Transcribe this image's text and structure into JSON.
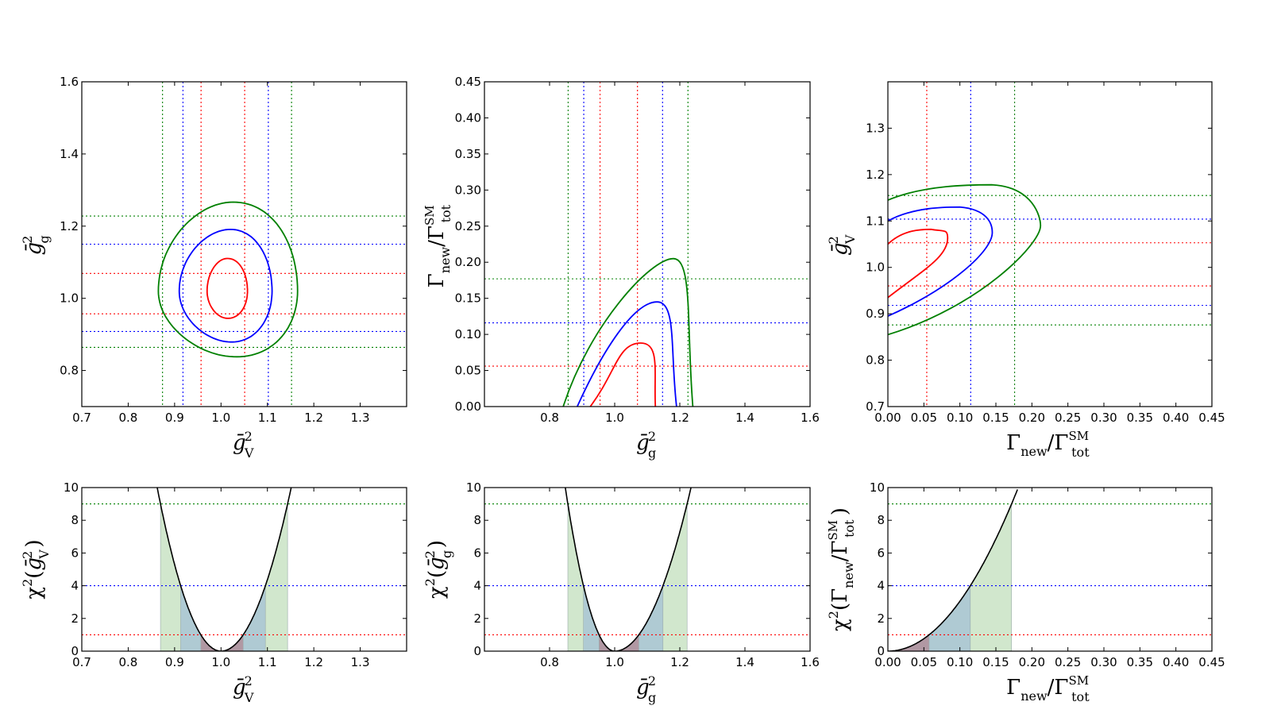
{
  "colors": {
    "c1": "#ff0000",
    "c2": "#0000ff",
    "c3": "#008000",
    "band1": "#b28f9a",
    "band2": "#a9c4d4",
    "band3": "#c9e3c4"
  },
  "chart_data": [
    {
      "id": "contour_gv_gg",
      "type": "contour",
      "xlabel": "ḡ²_V",
      "ylabel": "ḡ²_g",
      "xlim": [
        0.7,
        1.4
      ],
      "ylim": [
        0.7,
        1.6
      ],
      "xticks": [
        "0.7",
        "0.8",
        "0.9",
        "1.0",
        "1.1",
        "1.2",
        "1.3"
      ],
      "yticks": [
        "0.8",
        "1.0",
        "1.2",
        "1.4",
        "1.6"
      ],
      "center": [
        1.01,
        1.02
      ],
      "contours": [
        {
          "level": 1,
          "color": "red",
          "rx": [
            0.04,
            0.047
          ],
          "ry": [
            0.075,
            0.09
          ]
        },
        {
          "level": 2,
          "color": "blue",
          "rx": [
            0.1,
            0.1
          ],
          "ry": [
            0.14,
            0.17
          ]
        },
        {
          "level": 3,
          "color": "green",
          "rx": [
            0.145,
            0.155
          ],
          "ry": [
            0.18,
            0.245
          ]
        }
      ],
      "vlines": [
        {
          "x": 0.957,
          "color": "red"
        },
        {
          "x": 1.051,
          "color": "red"
        },
        {
          "x": 0.918,
          "color": "blue"
        },
        {
          "x": 1.102,
          "color": "blue"
        },
        {
          "x": 0.874,
          "color": "green"
        },
        {
          "x": 1.152,
          "color": "green"
        }
      ],
      "hlines": [
        {
          "y": 0.957,
          "color": "red"
        },
        {
          "y": 1.069,
          "color": "red"
        },
        {
          "y": 0.908,
          "color": "blue"
        },
        {
          "y": 1.15,
          "color": "blue"
        },
        {
          "y": 0.864,
          "color": "green"
        },
        {
          "y": 1.228,
          "color": "green"
        }
      ]
    },
    {
      "id": "contour_gg_gamma",
      "type": "contour",
      "xlabel": "ḡ²_g",
      "ylabel": "Γ_new/Γ_tot^SM",
      "xlim": [
        0.6,
        1.6
      ],
      "ylim": [
        0.0,
        0.45
      ],
      "xticks": [
        "0.8",
        "1.0",
        "1.2",
        "1.4",
        "1.6"
      ],
      "yticks": [
        "0.00",
        "0.05",
        "0.10",
        "0.15",
        "0.20",
        "0.25",
        "0.30",
        "0.35",
        "0.40",
        "0.45"
      ],
      "contours": [
        {
          "level": 1,
          "color": "red",
          "top": [
            1.09,
            0.088
          ],
          "left": 0.925,
          "right": 1.125
        },
        {
          "level": 2,
          "color": "blue",
          "top": [
            1.14,
            0.145
          ],
          "left": 0.885,
          "right": 1.19
        },
        {
          "level": 3,
          "color": "green",
          "top": [
            1.19,
            0.205
          ],
          "left": 0.842,
          "right": 1.24
        }
      ],
      "vlines": [
        {
          "x": 0.955,
          "color": "red"
        },
        {
          "x": 1.07,
          "color": "red"
        },
        {
          "x": 0.905,
          "color": "blue"
        },
        {
          "x": 1.147,
          "color": "blue"
        },
        {
          "x": 0.857,
          "color": "green"
        },
        {
          "x": 1.225,
          "color": "green"
        }
      ],
      "hlines": [
        {
          "y": 0.056,
          "color": "red"
        },
        {
          "y": 0.116,
          "color": "blue"
        },
        {
          "y": 0.177,
          "color": "green"
        }
      ]
    },
    {
      "id": "contour_gamma_gv",
      "type": "contour",
      "xlabel": "Γ_new/Γ_tot^SM",
      "ylabel": "ḡ²_V",
      "xlim": [
        0.0,
        0.45
      ],
      "ylim": [
        0.7,
        1.4
      ],
      "xticks": [
        "0.00",
        "0.05",
        "0.10",
        "0.15",
        "0.20",
        "0.25",
        "0.30",
        "0.35",
        "0.40",
        "0.45"
      ],
      "yticks": [
        "0.7",
        "0.8",
        "0.9",
        "1.0",
        "1.1",
        "1.2",
        "1.3"
      ],
      "contours": [
        {
          "level": 1,
          "color": "red",
          "upper": 1.05,
          "lower": 0.935,
          "right": [
            0.083,
            1.063
          ],
          "top": [
            0.06,
            1.082
          ]
        },
        {
          "level": 2,
          "color": "blue",
          "upper": 1.1,
          "lower": 0.895,
          "right": [
            0.145,
            1.075
          ],
          "top": [
            0.1,
            1.13
          ]
        },
        {
          "level": 3,
          "color": "green",
          "upper": 1.145,
          "lower": 0.855,
          "right": [
            0.212,
            1.09
          ],
          "top": [
            0.145,
            1.178
          ]
        }
      ],
      "vlines": [
        {
          "x": 0.054,
          "color": "red"
        },
        {
          "x": 0.115,
          "color": "blue"
        },
        {
          "x": 0.176,
          "color": "green"
        }
      ],
      "hlines": [
        {
          "y": 0.96,
          "color": "red"
        },
        {
          "y": 1.053,
          "color": "red"
        },
        {
          "y": 0.918,
          "color": "blue"
        },
        {
          "y": 1.104,
          "color": "blue"
        },
        {
          "y": 0.876,
          "color": "green"
        },
        {
          "y": 1.155,
          "color": "green"
        }
      ]
    },
    {
      "id": "chi2_gv",
      "type": "line",
      "xlabel": "ḡ²_V",
      "ylabel": "χ²(ḡ²_V)",
      "xlim": [
        0.7,
        1.4
      ],
      "ylim": [
        0,
        10
      ],
      "xticks": [
        "0.7",
        "0.8",
        "0.9",
        "1.0",
        "1.1",
        "1.2",
        "1.3"
      ],
      "yticks": [
        "0",
        "2",
        "4",
        "6",
        "8",
        "10"
      ],
      "minimum": 1.0,
      "coef_left": 529,
      "coef_right": 437,
      "hlines": [
        {
          "y": 1,
          "color": "red"
        },
        {
          "y": 4,
          "color": "blue"
        },
        {
          "y": 9,
          "color": "green"
        }
      ]
    },
    {
      "id": "chi2_gg",
      "type": "line",
      "xlabel": "ḡ²_g",
      "ylabel": "χ²(ḡ²_g)",
      "xlim": [
        0.6,
        1.6
      ],
      "ylim": [
        0,
        10
      ],
      "xticks": [
        "0.8",
        "1.0",
        "1.2",
        "1.4",
        "1.6"
      ],
      "yticks": [
        "0",
        "2",
        "4",
        "6",
        "8",
        "10"
      ],
      "minimum": 1.0,
      "coef_left": 435,
      "coef_right": 182,
      "hlines": [
        {
          "y": 1,
          "color": "red"
        },
        {
          "y": 4,
          "color": "blue"
        },
        {
          "y": 9,
          "color": "green"
        }
      ]
    },
    {
      "id": "chi2_gamma",
      "type": "line",
      "xlabel": "Γ_new/Γ_tot^SM",
      "ylabel": "χ²(Γ_new/Γ_tot^SM)",
      "xlim": [
        0.0,
        0.45
      ],
      "ylim": [
        0,
        10
      ],
      "xticks": [
        "0.00",
        "0.05",
        "0.10",
        "0.15",
        "0.20",
        "0.25",
        "0.30",
        "0.35",
        "0.40",
        "0.45"
      ],
      "yticks": [
        "0",
        "2",
        "4",
        "6",
        "8",
        "10"
      ],
      "minimum": 0.0,
      "coef_right": 305,
      "xmax_shown": 0.181,
      "hlines": [
        {
          "y": 1,
          "color": "red"
        },
        {
          "y": 4,
          "color": "blue"
        },
        {
          "y": 9,
          "color": "green"
        }
      ]
    }
  ]
}
